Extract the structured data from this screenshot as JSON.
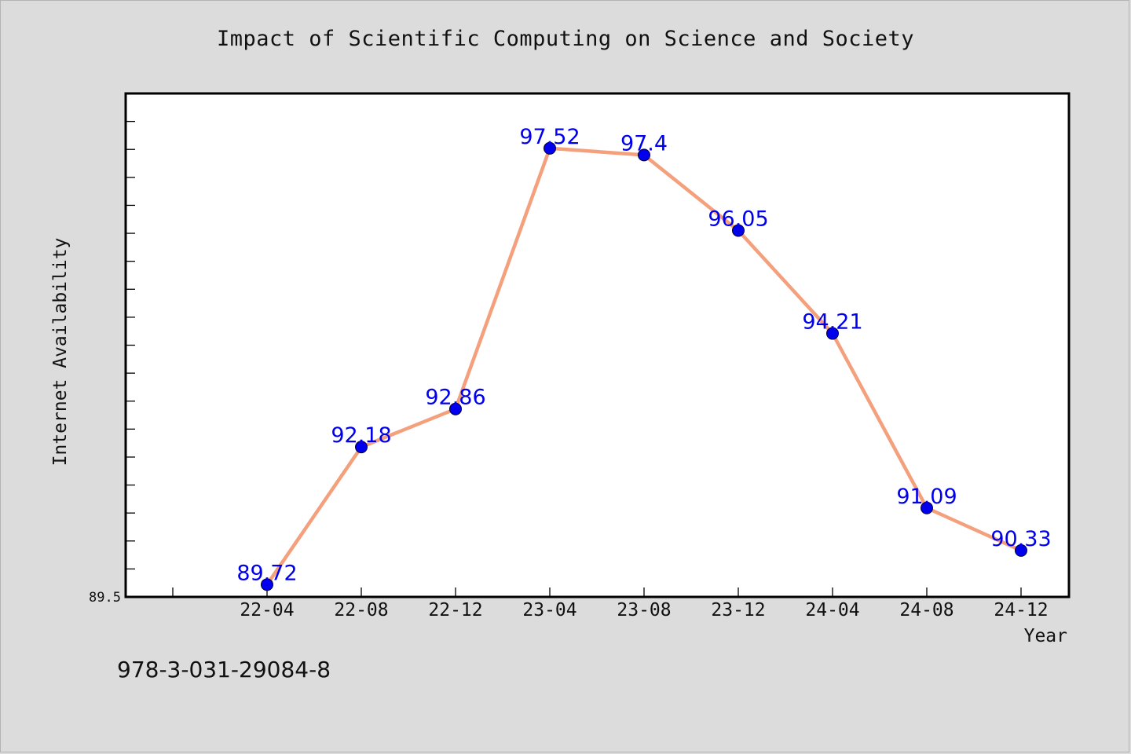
{
  "chart_data": {
    "type": "line",
    "title": "Impact of Scientific Computing on Science and Society",
    "xlabel": "Year",
    "ylabel": "Internet Availability",
    "categories": [
      "22-04",
      "22-08",
      "22-12",
      "23-04",
      "23-08",
      "23-12",
      "24-04",
      "24-08",
      "24-12"
    ],
    "series": [
      {
        "values": [
          89.72,
          92.18,
          92.86,
          97.52,
          97.4,
          96.05,
          94.21,
          91.09,
          90.33
        ],
        "line_color": "#f4a07c",
        "marker_color": "#0000ee"
      }
    ],
    "data_labels": [
      "89.72",
      "92.18",
      "92.86",
      "97.52",
      "97.4",
      "96.05",
      "94.21",
      "91.09",
      "90.33"
    ],
    "ylim": [
      89.5,
      98.5
    ],
    "y_tick_label": "89.5",
    "grid": false,
    "legend": "none"
  },
  "footer_text": "978-3-031-29084-8",
  "colors": {
    "background": "#dcdcdc",
    "plot_background": "#ffffff",
    "data_label": "#0000ee"
  }
}
